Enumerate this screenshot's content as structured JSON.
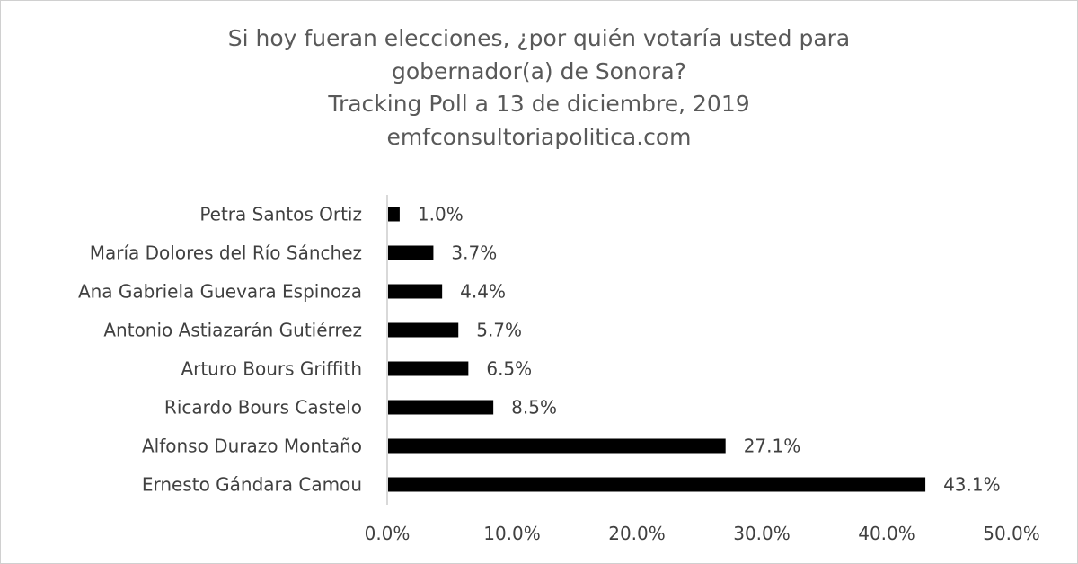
{
  "chart_data": {
    "type": "bar",
    "orientation": "horizontal",
    "title_lines": [
      "Si hoy fueran elecciones, ¿por quién votaría usted para",
      "gobernador(a) de Sonora?",
      "Tracking Poll a 13 de diciembre, 2019",
      "emfconsultoriapolitica.com"
    ],
    "categories": [
      "Petra Santos Ortiz",
      "María Dolores del Río Sánchez",
      "Ana Gabriela Guevara Espinoza",
      "Antonio Astiazarán Gutiérrez",
      "Arturo Bours Griffith",
      "Ricardo Bours Castelo",
      "Alfonso Durazo Montaño",
      "Ernesto Gándara Camou"
    ],
    "values": [
      1.0,
      3.7,
      4.4,
      5.7,
      6.5,
      8.5,
      27.1,
      43.1
    ],
    "data_labels": [
      "1.0%",
      "3.7%",
      "4.4%",
      "5.7%",
      "6.5%",
      "8.5%",
      "27.1%",
      "43.1%"
    ],
    "x_ticks": [
      "0.0%",
      "10.0%",
      "20.0%",
      "30.0%",
      "40.0%",
      "50.0%"
    ],
    "xlim": [
      0,
      50
    ],
    "xlabel": "",
    "ylabel": "",
    "grid": false,
    "bar_color": "#000000"
  }
}
